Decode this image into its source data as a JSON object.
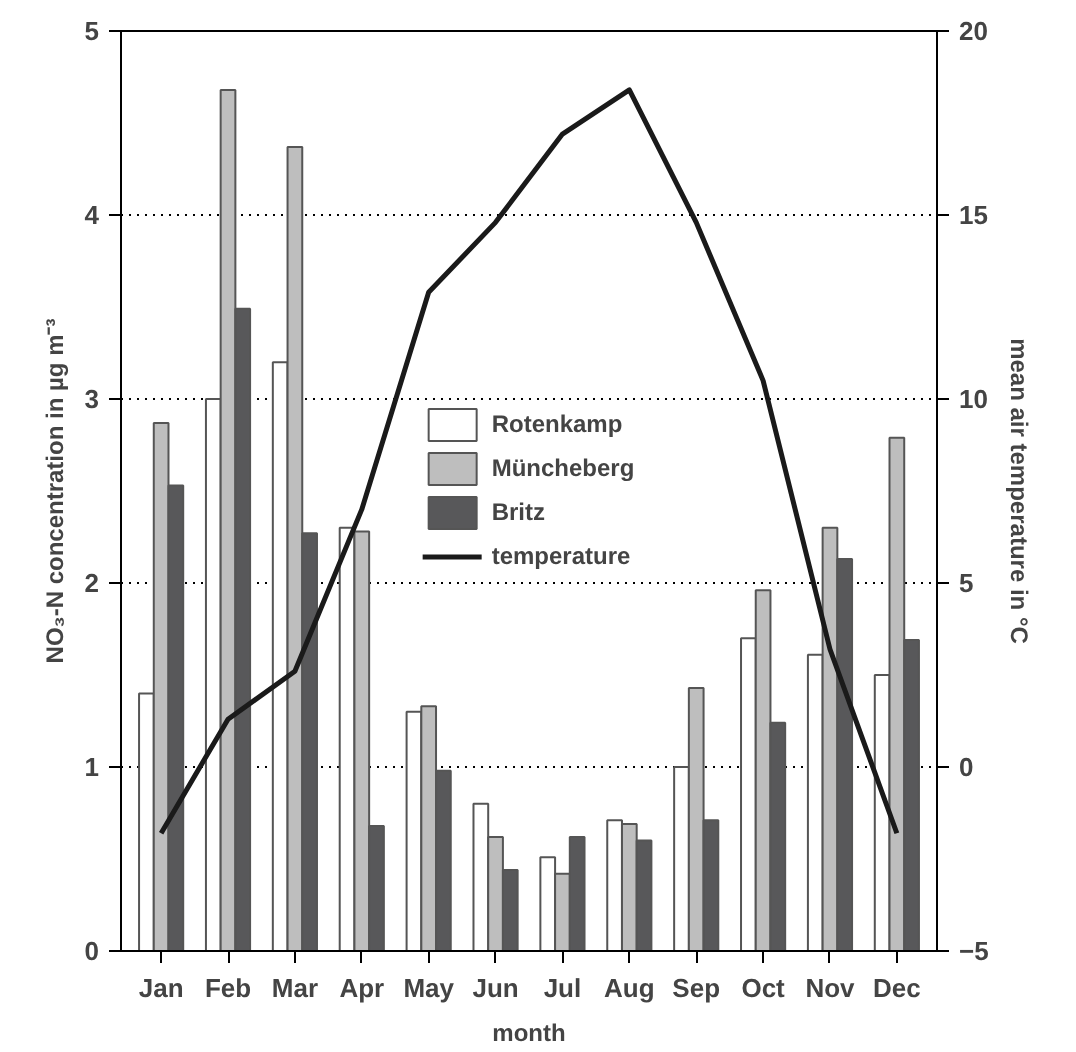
{
  "chart_data": {
    "type": "bar",
    "xlabel": "month",
    "ylabel": "NO₃-N concentration in µg m⁻³",
    "y2label": "mean air temperature in °C",
    "categories": [
      "Jan",
      "Feb",
      "Mar",
      "Apr",
      "May",
      "Jun",
      "Jul",
      "Aug",
      "Sep",
      "Oct",
      "Nov",
      "Dec"
    ],
    "series": [
      {
        "name": "Rotenkamp",
        "color": "#ffffff",
        "values": [
          1.4,
          3.0,
          3.2,
          2.3,
          1.3,
          0.8,
          0.51,
          0.71,
          1.0,
          1.7,
          1.61,
          1.5
        ]
      },
      {
        "name": "Müncheberg",
        "color": "#bebebe",
        "values": [
          2.87,
          4.68,
          4.37,
          2.28,
          1.33,
          0.62,
          0.42,
          0.69,
          1.43,
          1.96,
          2.3,
          2.79
        ]
      },
      {
        "name": "Britz",
        "color": "#58585a",
        "values": [
          2.53,
          3.49,
          2.27,
          0.68,
          0.98,
          0.44,
          0.62,
          0.6,
          0.71,
          1.24,
          2.13,
          1.69
        ]
      },
      {
        "name": "temperature",
        "type": "line",
        "axis": "y2",
        "color": "#1a1a1a",
        "values": [
          -1.8,
          1.3,
          2.6,
          7.0,
          12.9,
          14.8,
          17.2,
          18.4,
          14.8,
          10.5,
          3.2,
          -1.8
        ]
      }
    ],
    "ylim": [
      0,
      5
    ],
    "yticks": [
      0,
      1,
      2,
      3,
      4,
      5
    ],
    "y2lim": [
      -5,
      20
    ],
    "y2ticks": [
      -5,
      0,
      5,
      10,
      15,
      20
    ],
    "grid": "y",
    "legend": "center",
    "line_style": "solid"
  }
}
